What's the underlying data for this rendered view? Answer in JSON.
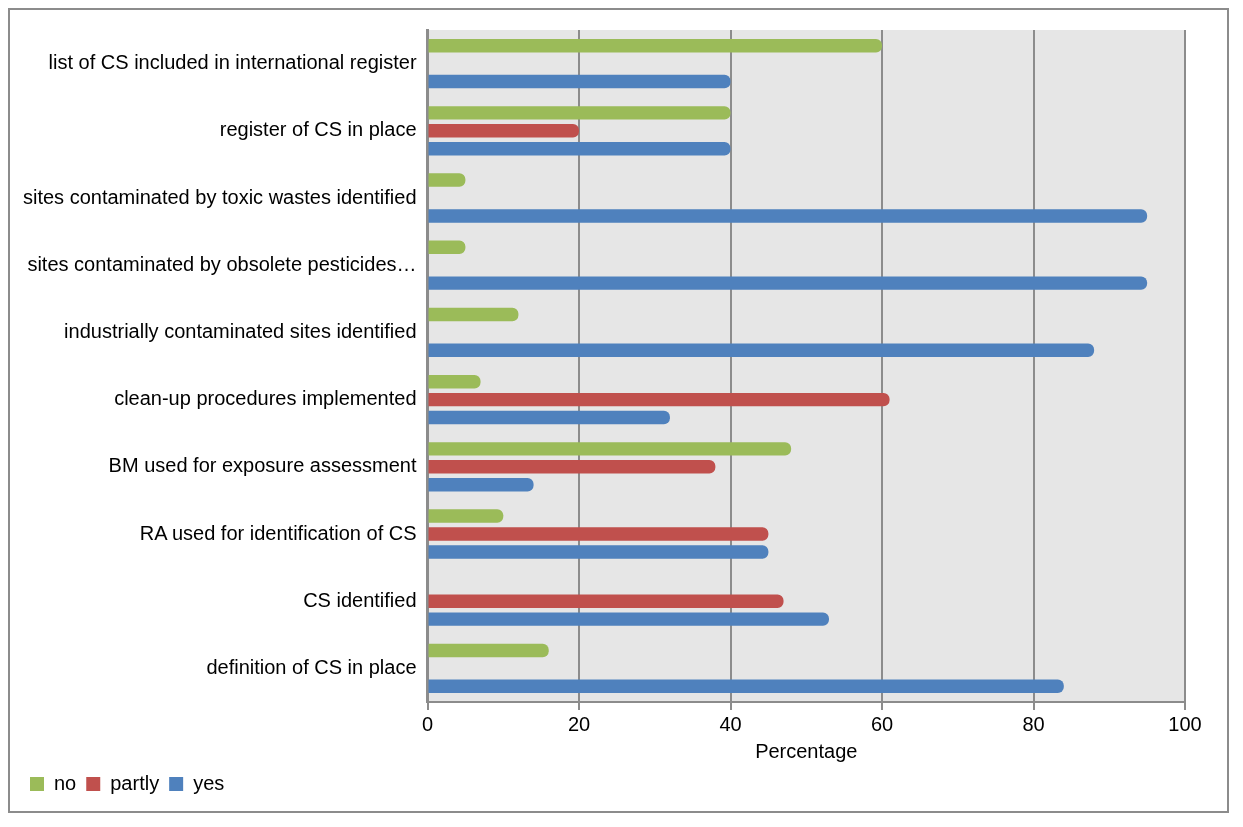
{
  "chart_data": {
    "type": "bar",
    "orientation": "horizontal",
    "xlabel": "Percentage",
    "categories": [
      "list of CS included in international register",
      "register of CS in place",
      "sites contaminated by toxic wastes identified",
      "sites contaminated by obsolete pesticides…",
      "industrially contaminated sites identified",
      "clean-up procedures implemented",
      "BM used for exposure assessment",
      "RA used for identification of CS",
      "CS identified",
      "definition of CS in place"
    ],
    "series": [
      {
        "name": "no",
        "color": "#9bbb59",
        "values": [
          60,
          40,
          5,
          5,
          12,
          7,
          48,
          10,
          0,
          16
        ]
      },
      {
        "name": "partly",
        "color": "#c0504d",
        "values": [
          0,
          20,
          0,
          0,
          0,
          61,
          38,
          45,
          47,
          0
        ]
      },
      {
        "name": "yes",
        "color": "#4f81bd",
        "values": [
          40,
          40,
          95,
          95,
          88,
          32,
          14,
          45,
          53,
          84
        ]
      }
    ],
    "xlim": [
      0,
      100
    ],
    "xticks": [
      0,
      20,
      40,
      60,
      80,
      100
    ],
    "grid": "x",
    "legend": "bottom left"
  }
}
